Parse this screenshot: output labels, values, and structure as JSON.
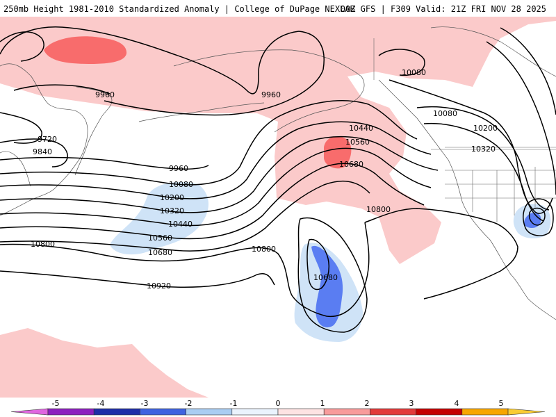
{
  "header": {
    "left_title": "250mb Height 1981-2010 Standardized Anomaly | College of DuPage NEXLAB",
    "right_title": "00Z GFS | F309 Valid: 21Z FRI NOV 28 2025"
  },
  "colors": {
    "pos1": "#fbcaca",
    "pos2": "#f86c6c",
    "pos3": "#ee2323",
    "pos4": "#b80000",
    "pos5": "#f7a600",
    "neg1": "#cfe3f7",
    "neg2": "#5a7df2",
    "neg3": "#2947c7",
    "neg4": "#1f2ea8",
    "neg5": "#8d1fbf",
    "contour": "#000000",
    "coast": "#555555"
  },
  "contour_labels": [
    {
      "text": "9960"
    },
    {
      "text": "9960"
    },
    {
      "text": "9720"
    },
    {
      "text": "9840"
    },
    {
      "text": "9960"
    },
    {
      "text": "10080"
    },
    {
      "text": "10200"
    },
    {
      "text": "10320"
    },
    {
      "text": "10440"
    },
    {
      "text": "10560"
    },
    {
      "text": "10680"
    },
    {
      "text": "10800"
    },
    {
      "text": "10920"
    },
    {
      "text": "10800"
    },
    {
      "text": "10680"
    },
    {
      "text": "10440"
    },
    {
      "text": "10560"
    },
    {
      "text": "10680"
    },
    {
      "text": "10800"
    },
    {
      "text": "10080"
    },
    {
      "text": "10080"
    },
    {
      "text": "10200"
    },
    {
      "text": "10320"
    }
  ],
  "legend": {
    "ticks": [
      "-5",
      "-4",
      "-3",
      "-2",
      "-1",
      "0",
      "1",
      "2",
      "3",
      "4",
      "5"
    ],
    "scale": [
      {
        "value": -5,
        "color": "#e066e0"
      },
      {
        "value": -4.5,
        "color": "#8d1fbf"
      },
      {
        "value": -3.5,
        "color": "#1f2ea8"
      },
      {
        "value": -2.5,
        "color": "#3f63e0"
      },
      {
        "value": -1.5,
        "color": "#a9cdf2"
      },
      {
        "value": -0.5,
        "color": "#eaf3fd"
      },
      {
        "value": 0.5,
        "color": "#fde3e3"
      },
      {
        "value": 1.5,
        "color": "#f89b9b"
      },
      {
        "value": 2.5,
        "color": "#e23a3a"
      },
      {
        "value": 3.5,
        "color": "#c40000"
      },
      {
        "value": 4.5,
        "color": "#f7a600"
      },
      {
        "value": 5,
        "color": "#f9cc33"
      }
    ]
  }
}
